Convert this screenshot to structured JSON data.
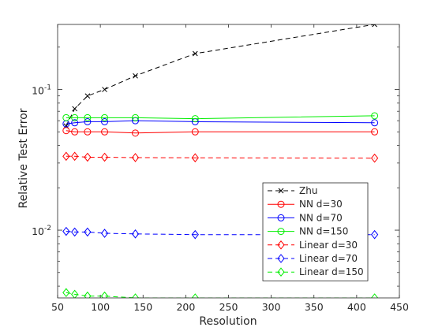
{
  "chart_data": {
    "type": "line",
    "title": "",
    "xlabel": "Resolution",
    "ylabel": "Relative Test Error",
    "xlim": [
      50,
      450
    ],
    "ylim": [
      0.0033,
      0.29
    ],
    "yscale": "log",
    "xticks": [
      50,
      100,
      150,
      200,
      250,
      300,
      350,
      400,
      450
    ],
    "yticks": [
      0.01,
      0.1
    ],
    "ytick_labels": [
      {
        "base": "10",
        "exp": "-2"
      },
      {
        "base": "10",
        "exp": "-1"
      }
    ],
    "grid": false,
    "legend_position": "lower-right",
    "series": [
      {
        "name": "Zhu",
        "color": "#000000",
        "dash": "dashed",
        "marker": "x",
        "x": [
          60,
          70,
          85,
          105,
          141,
          211,
          421
        ],
        "y": [
          0.055,
          0.073,
          0.09,
          0.1,
          0.125,
          0.18,
          0.29
        ]
      },
      {
        "name": "NN d=30",
        "color": "#ff0000",
        "dash": "solid",
        "marker": "o",
        "x": [
          60,
          70,
          85,
          105,
          141,
          211,
          421
        ],
        "y": [
          0.051,
          0.05,
          0.05,
          0.05,
          0.049,
          0.05,
          0.05
        ]
      },
      {
        "name": "NN d=70",
        "color": "#0000ff",
        "dash": "solid",
        "marker": "o",
        "x": [
          60,
          70,
          85,
          105,
          141,
          211,
          421
        ],
        "y": [
          0.057,
          0.058,
          0.059,
          0.059,
          0.06,
          0.059,
          0.058
        ]
      },
      {
        "name": "NN d=150",
        "color": "#00ee00",
        "dash": "solid",
        "marker": "o",
        "x": [
          60,
          70,
          85,
          105,
          141,
          211,
          421
        ],
        "y": [
          0.063,
          0.063,
          0.063,
          0.063,
          0.063,
          0.062,
          0.065
        ]
      },
      {
        "name": "Linear d=30",
        "color": "#ff0000",
        "dash": "dashed",
        "marker": "diamond",
        "x": [
          60,
          70,
          85,
          105,
          141,
          211,
          421
        ],
        "y": [
          0.0335,
          0.0335,
          0.033,
          0.033,
          0.0328,
          0.0327,
          0.0325
        ]
      },
      {
        "name": "Linear d=70",
        "color": "#0000ff",
        "dash": "dashed",
        "marker": "diamond",
        "x": [
          60,
          70,
          85,
          105,
          141,
          211,
          421
        ],
        "y": [
          0.0098,
          0.0097,
          0.0097,
          0.0095,
          0.0094,
          0.0093,
          0.0093
        ]
      },
      {
        "name": "Linear d=150",
        "color": "#00ee00",
        "dash": "dashed",
        "marker": "diamond",
        "x": [
          60,
          70,
          85,
          105,
          141,
          211,
          421
        ],
        "y": [
          0.0036,
          0.0035,
          0.0034,
          0.0034,
          0.0033,
          0.0033,
          0.0033
        ]
      }
    ]
  }
}
